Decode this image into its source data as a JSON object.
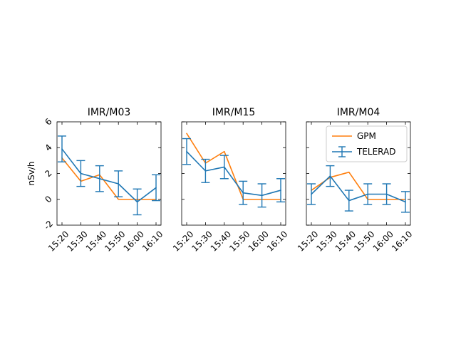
{
  "chart_data": [
    {
      "type": "line",
      "title": "IMR/M03",
      "ylabel": "nSv/h",
      "categories": [
        "15:20",
        "15:30",
        "15:40",
        "15:50",
        "16:00",
        "16:10"
      ],
      "ylim": [
        -2,
        6
      ],
      "yticks": [
        -2,
        0,
        2,
        4,
        6
      ],
      "series": [
        {
          "name": "GPM",
          "values": [
            3.2,
            1.4,
            1.9,
            0.0,
            0.0,
            0.0
          ]
        },
        {
          "name": "TELERAD",
          "values": [
            3.9,
            2.0,
            1.6,
            1.2,
            -0.2,
            0.9
          ],
          "err": [
            1.0,
            1.0,
            1.0,
            1.0,
            1.0,
            1.0
          ]
        }
      ]
    },
    {
      "type": "line",
      "title": "IMR/M15",
      "categories": [
        "15:20",
        "15:30",
        "15:40",
        "15:50",
        "16:00",
        "16:10"
      ],
      "ylim": [
        -2,
        6
      ],
      "series": [
        {
          "name": "GPM",
          "values": [
            5.1,
            2.8,
            3.7,
            0.0,
            0.0,
            0.0
          ]
        },
        {
          "name": "TELERAD",
          "values": [
            3.7,
            2.2,
            2.5,
            0.5,
            0.3,
            0.7
          ],
          "err": [
            1.0,
            0.9,
            0.9,
            0.9,
            0.9,
            0.9
          ]
        }
      ]
    },
    {
      "type": "line",
      "title": "IMR/M04",
      "categories": [
        "15:20",
        "15:30",
        "15:40",
        "15:50",
        "16:00",
        "16:10"
      ],
      "ylim": [
        -2,
        6
      ],
      "legend": "top-right",
      "series": [
        {
          "name": "GPM",
          "values": [
            0.7,
            1.7,
            2.1,
            0.0,
            0.0,
            0.0
          ]
        },
        {
          "name": "TELERAD",
          "values": [
            0.4,
            1.8,
            -0.1,
            0.4,
            0.4,
            -0.2
          ],
          "err": [
            0.8,
            0.8,
            0.8,
            0.8,
            0.8,
            0.8
          ]
        }
      ]
    }
  ],
  "colors": {
    "GPM": "#ff7f0e",
    "TELERAD": "#1f77b4"
  }
}
